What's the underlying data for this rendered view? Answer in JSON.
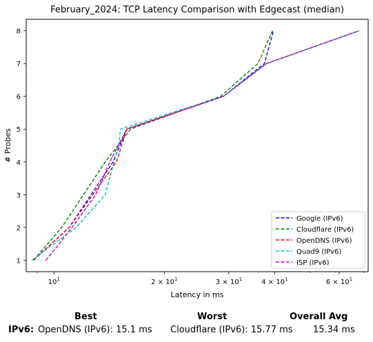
{
  "chart_data": {
    "type": "line",
    "title": "February_2024: TCP Latency Comparison with Edgecast (median)",
    "xlabel": "Latency in ms",
    "ylabel": "# Probes",
    "xscale": "log",
    "xlim": [
      8.4,
      72
    ],
    "ylim": [
      0.65,
      8.35
    ],
    "x_ticks": [
      {
        "value": 10,
        "base": "10",
        "exp": "1"
      },
      {
        "value": 20,
        "base": "2 × 10",
        "exp": "1"
      },
      {
        "value": 30,
        "base": "3 × 10",
        "exp": "1"
      },
      {
        "value": 40,
        "base": "4 × 10",
        "exp": "1"
      },
      {
        "value": 60,
        "base": "6 × 10",
        "exp": "1"
      }
    ],
    "y_ticks": [
      1,
      2,
      3,
      4,
      5,
      6,
      7,
      8
    ],
    "legend_position": "lower-right",
    "line_style": "dashed",
    "series": [
      {
        "name": "Google (IPv6)",
        "color": "#0000ff",
        "x": [
          8.8,
          11.0,
          14.5,
          15.8,
          29.0,
          37.5,
          39.7
        ],
        "y": [
          1,
          2,
          4,
          5,
          6,
          7,
          8
        ]
      },
      {
        "name": "Cloudflare (IPv6)",
        "color": "#008000",
        "x": [
          8.8,
          10.5,
          13.8,
          16.2,
          28.5,
          36.0,
          39.5
        ],
        "y": [
          1,
          2,
          4,
          5,
          6,
          7,
          8
        ]
      },
      {
        "name": "OpenDNS (IPv6)",
        "color": "#ff0000",
        "x": [
          8.8,
          11.0,
          14.8,
          15.8,
          29.0,
          38.0,
          68.0
        ],
        "y": [
          1,
          2,
          4,
          5,
          6,
          7,
          8
        ]
      },
      {
        "name": "Quad9 (IPv6)",
        "color": "#00bfbf",
        "x": [
          8.7,
          11.5,
          13.8,
          15.0,
          15.2,
          29.0,
          38.0,
          68.0
        ],
        "y": [
          1,
          2,
          3,
          4.5,
          5,
          6,
          7,
          8
        ]
      },
      {
        "name": "ISP (IPv6)",
        "color": "#bf00bf",
        "x": [
          9.5,
          10.0,
          11.2,
          13.0,
          14.2,
          15.8,
          29.0,
          38.0,
          68.0
        ],
        "y": [
          1,
          1.3,
          2,
          3,
          4,
          5,
          6,
          7,
          8
        ]
      }
    ]
  },
  "summary": {
    "headers": {
      "best": "Best",
      "worst": "Worst",
      "overall_avg": "Overall Avg"
    },
    "rows": [
      {
        "label": "IPv6:",
        "best": "OpenDNS (IPv6): 15.1 ms",
        "worst": "Cloudflare (IPv6): 15.77 ms",
        "overall_avg": "15.34 ms"
      }
    ]
  }
}
